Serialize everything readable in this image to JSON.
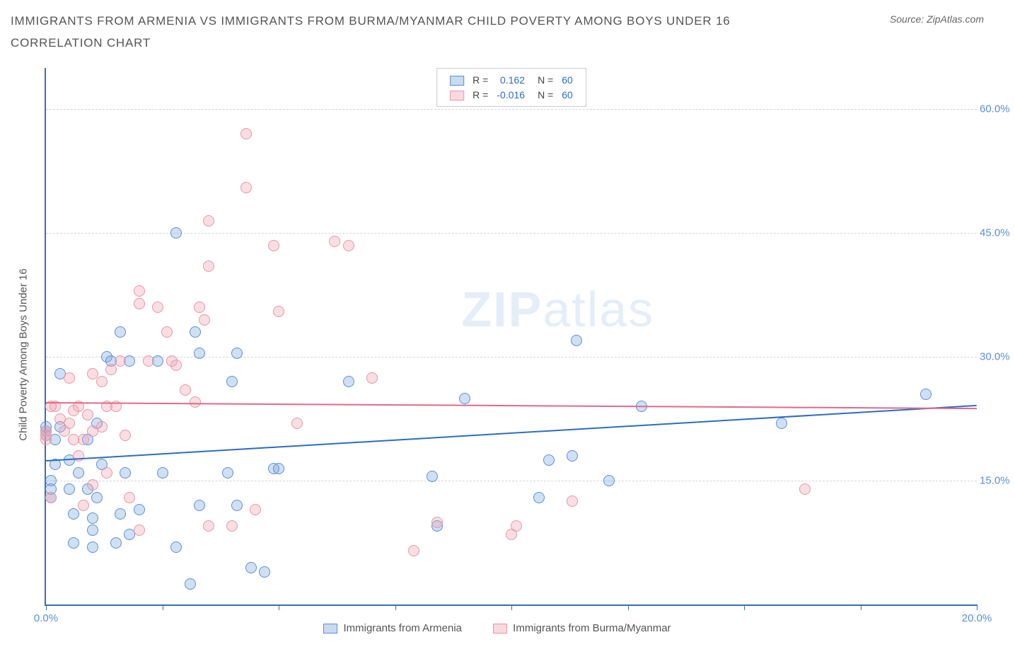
{
  "title": "IMMIGRANTS FROM ARMENIA VS IMMIGRANTS FROM BURMA/MYANMAR CHILD POVERTY AMONG BOYS UNDER 16 CORRELATION CHART",
  "source_label": "Source: ZipAtlas.com",
  "ylabel": "Child Poverty Among Boys Under 16",
  "watermark_bold": "ZIP",
  "watermark_rest": "atlas",
  "chart": {
    "type": "scatter",
    "xlim": [
      0,
      20
    ],
    "ylim": [
      0,
      65
    ],
    "x_ticks": [
      0,
      2.5,
      5,
      7.5,
      10,
      12.5,
      15,
      17.5,
      20
    ],
    "x_tick_labels": {
      "0": "0.0%",
      "20": "20.0%"
    },
    "y_ticks": [
      15,
      30,
      45,
      60
    ],
    "y_tick_labels": {
      "15": "15.0%",
      "30": "30.0%",
      "45": "45.0%",
      "60": "60.0%"
    },
    "background_color": "#ffffff",
    "grid_color": "#d4d4d4",
    "axis_color": "#3b6db0",
    "tick_label_color": "#5a8fd6",
    "series": [
      {
        "name": "Immigrants from Armenia",
        "fill": "rgba(120,165,220,0.35)",
        "stroke": "#5a8fd6",
        "r_label": "R =",
        "r_value": "0.162",
        "n_label": "N =",
        "n_value": "60",
        "trend": {
          "x0": 0,
          "y0": 17.5,
          "x1": 20,
          "y1": 24.2,
          "color": "#2e6cc0"
        },
        "marker_radius": 8,
        "points": [
          [
            0.0,
            21.5
          ],
          [
            0.0,
            21.0
          ],
          [
            0.1,
            15.0
          ],
          [
            0.2,
            20.0
          ],
          [
            0.1,
            14.0
          ],
          [
            0.1,
            13.0
          ],
          [
            0.3,
            28.0
          ],
          [
            0.2,
            17.0
          ],
          [
            0.5,
            14.0
          ],
          [
            0.5,
            17.5
          ],
          [
            0.6,
            11.0
          ],
          [
            0.6,
            7.5
          ],
          [
            0.7,
            16.0
          ],
          [
            0.9,
            20.0
          ],
          [
            0.9,
            14.0
          ],
          [
            1.0,
            9.0
          ],
          [
            1.0,
            10.5
          ],
          [
            1.0,
            7.0
          ],
          [
            1.1,
            22.0
          ],
          [
            1.1,
            13.0
          ],
          [
            1.2,
            17.0
          ],
          [
            1.3,
            30.0
          ],
          [
            1.4,
            29.5
          ],
          [
            1.5,
            7.5
          ],
          [
            1.6,
            33.0
          ],
          [
            1.6,
            11.0
          ],
          [
            1.7,
            16.0
          ],
          [
            1.8,
            29.5
          ],
          [
            1.8,
            8.5
          ],
          [
            2.0,
            11.5
          ],
          [
            2.4,
            29.5
          ],
          [
            2.5,
            16.0
          ],
          [
            2.8,
            45.0
          ],
          [
            2.8,
            7.0
          ],
          [
            3.1,
            2.5
          ],
          [
            3.2,
            33.0
          ],
          [
            3.3,
            30.5
          ],
          [
            3.3,
            12.0
          ],
          [
            3.9,
            16.0
          ],
          [
            4.0,
            27.0
          ],
          [
            4.1,
            30.5
          ],
          [
            4.1,
            12.0
          ],
          [
            4.4,
            4.5
          ],
          [
            4.7,
            4.0
          ],
          [
            4.9,
            16.5
          ],
          [
            5.0,
            16.5
          ],
          [
            6.5,
            27.0
          ],
          [
            8.3,
            15.5
          ],
          [
            8.4,
            9.5
          ],
          [
            9.0,
            25.0
          ],
          [
            10.6,
            13.0
          ],
          [
            10.8,
            17.5
          ],
          [
            11.3,
            18.0
          ],
          [
            11.4,
            32.0
          ],
          [
            12.1,
            15.0
          ],
          [
            12.8,
            24.0
          ],
          [
            15.8,
            22.0
          ],
          [
            18.9,
            25.5
          ],
          [
            0.0,
            20.5
          ],
          [
            0.3,
            21.5
          ]
        ]
      },
      {
        "name": "Immigrants from Burma/Myanmar",
        "fill": "rgba(240,160,175,0.35)",
        "stroke": "#e597a8",
        "r_label": "R =",
        "r_value": "-0.016",
        "n_label": "N =",
        "n_value": "60",
        "trend": {
          "x0": 0,
          "y0": 24.5,
          "x1": 20,
          "y1": 23.8,
          "color": "#e06a8a"
        },
        "marker_radius": 8,
        "points": [
          [
            0.0,
            20.0
          ],
          [
            0.0,
            21.0
          ],
          [
            0.0,
            20.5
          ],
          [
            0.1,
            13.0
          ],
          [
            0.2,
            24.0
          ],
          [
            0.3,
            22.5
          ],
          [
            0.5,
            27.5
          ],
          [
            0.5,
            22.0
          ],
          [
            0.6,
            23.5
          ],
          [
            0.7,
            24.0
          ],
          [
            0.7,
            18.0
          ],
          [
            0.8,
            12.0
          ],
          [
            0.8,
            20.0
          ],
          [
            0.9,
            23.0
          ],
          [
            1.0,
            28.0
          ],
          [
            1.0,
            14.5
          ],
          [
            1.0,
            21.0
          ],
          [
            1.2,
            27.0
          ],
          [
            1.3,
            16.0
          ],
          [
            1.3,
            24.0
          ],
          [
            1.5,
            24.0
          ],
          [
            1.6,
            29.5
          ],
          [
            1.7,
            20.5
          ],
          [
            1.8,
            13.0
          ],
          [
            2.0,
            38.0
          ],
          [
            2.0,
            9.0
          ],
          [
            2.2,
            29.5
          ],
          [
            2.4,
            36.0
          ],
          [
            2.6,
            33.0
          ],
          [
            2.7,
            29.5
          ],
          [
            2.8,
            29.0
          ],
          [
            3.2,
            24.5
          ],
          [
            3.3,
            36.0
          ],
          [
            3.4,
            34.5
          ],
          [
            3.5,
            46.5
          ],
          [
            3.5,
            41.0
          ],
          [
            3.5,
            9.5
          ],
          [
            4.0,
            9.5
          ],
          [
            4.3,
            57.0
          ],
          [
            4.3,
            50.5
          ],
          [
            4.5,
            11.5
          ],
          [
            4.9,
            43.5
          ],
          [
            5.0,
            35.5
          ],
          [
            5.4,
            22.0
          ],
          [
            6.2,
            44.0
          ],
          [
            6.5,
            43.5
          ],
          [
            7.0,
            27.5
          ],
          [
            7.9,
            6.5
          ],
          [
            8.4,
            10.0
          ],
          [
            10.0,
            8.5
          ],
          [
            10.1,
            9.5
          ],
          [
            11.3,
            12.5
          ],
          [
            16.3,
            14.0
          ],
          [
            0.1,
            24.0
          ],
          [
            0.4,
            21.0
          ],
          [
            0.6,
            20.0
          ],
          [
            1.2,
            21.5
          ],
          [
            1.4,
            28.5
          ],
          [
            2.0,
            36.5
          ],
          [
            3.0,
            26.0
          ]
        ]
      }
    ]
  }
}
